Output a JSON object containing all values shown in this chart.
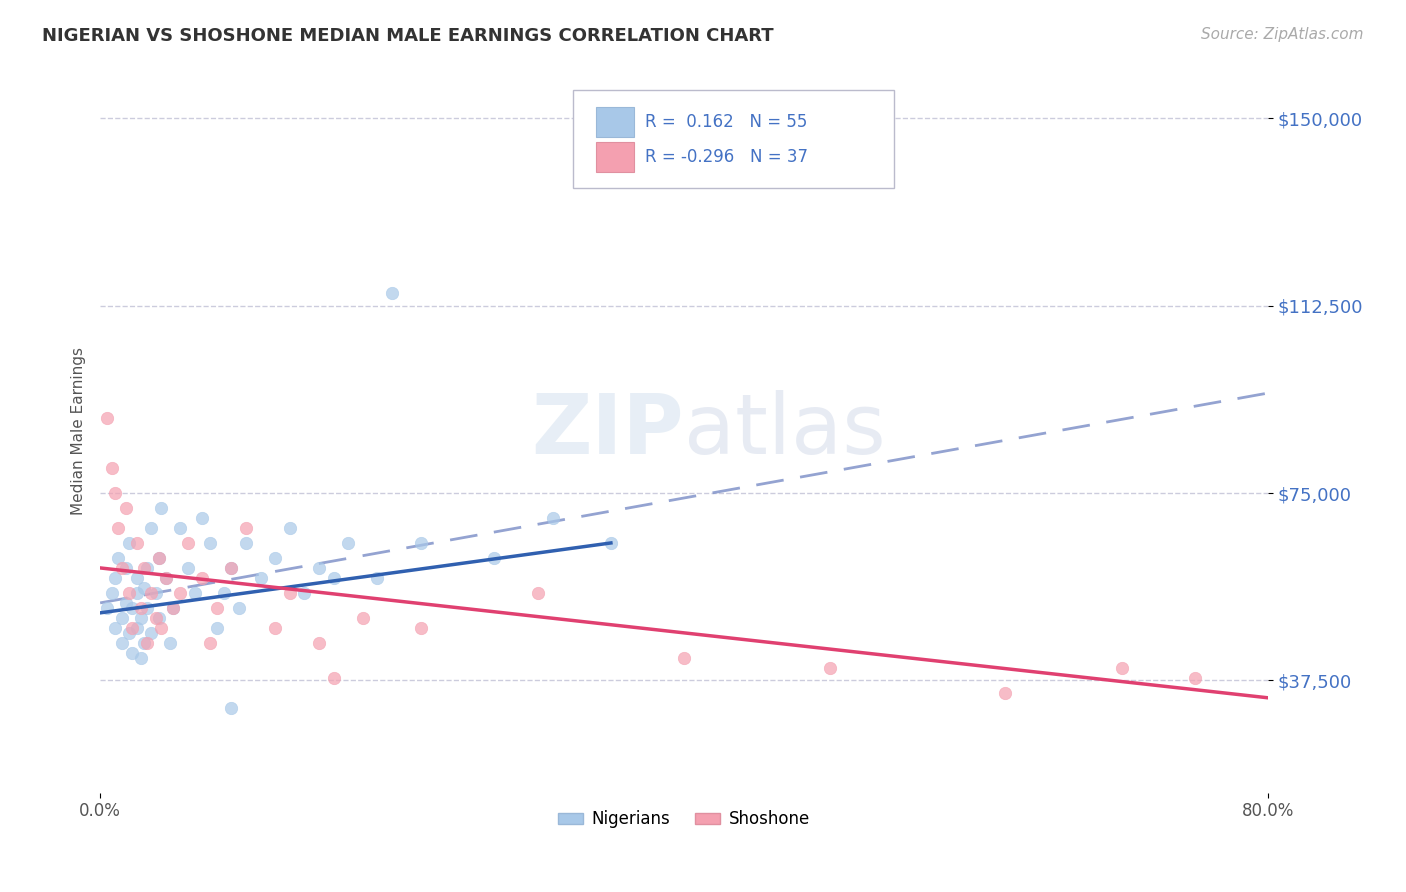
{
  "title": "NIGERIAN VS SHOSHONE MEDIAN MALE EARNINGS CORRELATION CHART",
  "source": "Source: ZipAtlas.com",
  "ylabel": "Median Male Earnings",
  "xlim": [
    0.0,
    0.8
  ],
  "ylim": [
    15000,
    160000
  ],
  "yticks": [
    37500,
    75000,
    112500,
    150000
  ],
  "ytick_labels": [
    "$37,500",
    "$75,000",
    "$112,500",
    "$150,000"
  ],
  "nigerian_R": 0.162,
  "nigerian_N": 55,
  "shoshone_R": -0.296,
  "shoshone_N": 37,
  "nigerian_color": "#a8c8e8",
  "shoshone_color": "#f4a0b0",
  "nigerian_line_color": "#3060b0",
  "shoshone_line_color": "#e04070",
  "trendline_color": "#8899cc",
  "background_color": "#ffffff",
  "grid_color": "#ccccdd",
  "nigerian_scatter_x": [
    0.005,
    0.008,
    0.01,
    0.01,
    0.012,
    0.015,
    0.015,
    0.018,
    0.018,
    0.02,
    0.02,
    0.022,
    0.022,
    0.025,
    0.025,
    0.025,
    0.028,
    0.028,
    0.03,
    0.03,
    0.032,
    0.032,
    0.035,
    0.035,
    0.038,
    0.04,
    0.04,
    0.042,
    0.045,
    0.048,
    0.05,
    0.055,
    0.06,
    0.065,
    0.07,
    0.075,
    0.08,
    0.085,
    0.09,
    0.095,
    0.1,
    0.11,
    0.12,
    0.13,
    0.14,
    0.15,
    0.17,
    0.19,
    0.22,
    0.27,
    0.31,
    0.35,
    0.2,
    0.16,
    0.09
  ],
  "nigerian_scatter_y": [
    52000,
    55000,
    58000,
    48000,
    62000,
    50000,
    45000,
    53000,
    60000,
    47000,
    65000,
    52000,
    43000,
    55000,
    48000,
    58000,
    50000,
    42000,
    56000,
    45000,
    60000,
    52000,
    68000,
    47000,
    55000,
    62000,
    50000,
    72000,
    58000,
    45000,
    52000,
    68000,
    60000,
    55000,
    70000,
    65000,
    48000,
    55000,
    60000,
    52000,
    65000,
    58000,
    62000,
    68000,
    55000,
    60000,
    65000,
    58000,
    65000,
    62000,
    70000,
    65000,
    115000,
    58000,
    32000
  ],
  "shoshone_scatter_x": [
    0.005,
    0.008,
    0.01,
    0.012,
    0.015,
    0.018,
    0.02,
    0.022,
    0.025,
    0.028,
    0.03,
    0.032,
    0.035,
    0.038,
    0.04,
    0.042,
    0.045,
    0.05,
    0.055,
    0.06,
    0.07,
    0.075,
    0.08,
    0.09,
    0.1,
    0.12,
    0.13,
    0.15,
    0.16,
    0.18,
    0.22,
    0.3,
    0.4,
    0.5,
    0.62,
    0.7,
    0.75
  ],
  "shoshone_scatter_y": [
    90000,
    80000,
    75000,
    68000,
    60000,
    72000,
    55000,
    48000,
    65000,
    52000,
    60000,
    45000,
    55000,
    50000,
    62000,
    48000,
    58000,
    52000,
    55000,
    65000,
    58000,
    45000,
    52000,
    60000,
    68000,
    48000,
    55000,
    45000,
    38000,
    50000,
    48000,
    55000,
    42000,
    40000,
    35000,
    40000,
    38000
  ],
  "nigerian_line_x0": 0.0,
  "nigerian_line_x1": 0.35,
  "nigerian_line_y0": 51000,
  "nigerian_line_y1": 65000,
  "shoshone_line_x0": 0.0,
  "shoshone_line_x1": 0.8,
  "shoshone_line_y0": 60000,
  "shoshone_line_y1": 34000,
  "dash_line_x0": 0.0,
  "dash_line_x1": 0.8,
  "dash_line_y0": 53000,
  "dash_line_y1": 95000
}
